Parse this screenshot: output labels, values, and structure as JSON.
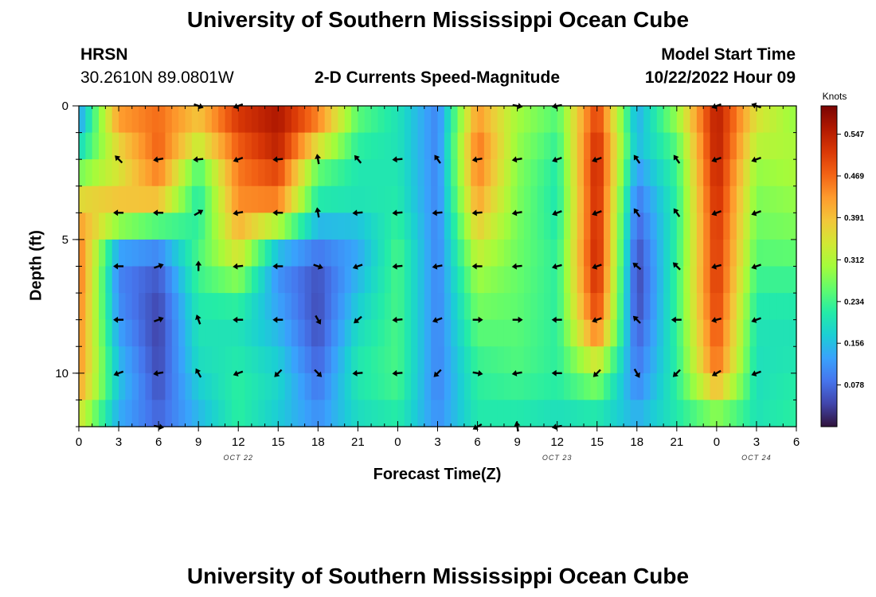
{
  "page": {
    "title_top": "University of Southern Mississippi Ocean Cube",
    "title_bottom": "University of Southern Mississippi Ocean Cube",
    "station": "HRSN",
    "coordinates": "30.2610N  89.0801W",
    "plot_title": "2-D Currents Speed-Magnitude",
    "model_start_label": "Model Start Time",
    "model_start_value": "10/22/2022 Hour 09"
  },
  "chart_data": {
    "type": "heatmap",
    "title": "2-D Currents Speed-Magnitude",
    "xlabel": "Forecast Time(Z)",
    "ylabel": "Depth (ft)",
    "x_range_hours": [
      0,
      54
    ],
    "y_range_ft": [
      0,
      12
    ],
    "x_ticks": [
      {
        "hour": 0,
        "label": "0"
      },
      {
        "hour": 3,
        "label": "3"
      },
      {
        "hour": 6,
        "label": "6"
      },
      {
        "hour": 9,
        "label": "9"
      },
      {
        "hour": 12,
        "label": "12"
      },
      {
        "hour": 15,
        "label": "15"
      },
      {
        "hour": 18,
        "label": "18"
      },
      {
        "hour": 21,
        "label": "21"
      },
      {
        "hour": 24,
        "label": "0"
      },
      {
        "hour": 27,
        "label": "3"
      },
      {
        "hour": 30,
        "label": "6"
      },
      {
        "hour": 33,
        "label": "9"
      },
      {
        "hour": 36,
        "label": "12"
      },
      {
        "hour": 39,
        "label": "15"
      },
      {
        "hour": 42,
        "label": "18"
      },
      {
        "hour": 45,
        "label": "21"
      },
      {
        "hour": 48,
        "label": "0"
      },
      {
        "hour": 51,
        "label": "3"
      },
      {
        "hour": 54,
        "label": "6"
      }
    ],
    "day_labels": [
      {
        "hour": 12,
        "label": "OCT 22"
      },
      {
        "hour": 36,
        "label": "OCT 23"
      },
      {
        "hour": 51,
        "label": "OCT 24"
      }
    ],
    "y_ticks": [
      {
        "ft": 0,
        "label": "0"
      },
      {
        "ft": 5,
        "label": "5"
      },
      {
        "ft": 10,
        "label": "10"
      }
    ],
    "colorbar": {
      "unit": "Knots",
      "min": 0.0,
      "max": 0.6,
      "ticks": [
        0.078,
        0.156,
        0.234,
        0.312,
        0.391,
        0.469,
        0.547
      ],
      "colors": [
        "#30123b",
        "#4145ab",
        "#4675ed",
        "#39a2fc",
        "#1bcfd4",
        "#24eca6",
        "#61fc6c",
        "#a4fc3b",
        "#d1e834",
        "#f3c63a",
        "#fe9b2d",
        "#f36315",
        "#d93806",
        "#b11901",
        "#7a0403"
      ]
    },
    "speed_grid_knots": {
      "x_node_hours": [
        0,
        3,
        6,
        9,
        12,
        15,
        18,
        21,
        24,
        27,
        30,
        33,
        36,
        39,
        42,
        45,
        48,
        51,
        54
      ],
      "depth_nodes_ft": [
        0,
        1,
        2,
        3,
        4,
        5,
        6,
        7,
        8,
        9,
        10,
        11,
        12
      ],
      "rows": [
        [
          0.1,
          0.45,
          0.45,
          0.37,
          0.53,
          0.55,
          0.45,
          0.26,
          0.2,
          0.1,
          0.4,
          0.3,
          0.25,
          0.5,
          0.12,
          0.32,
          0.55,
          0.36,
          0.28
        ],
        [
          0.15,
          0.4,
          0.48,
          0.4,
          0.5,
          0.57,
          0.44,
          0.24,
          0.2,
          0.1,
          0.46,
          0.3,
          0.24,
          0.52,
          0.16,
          0.26,
          0.56,
          0.34,
          0.3
        ],
        [
          0.22,
          0.34,
          0.47,
          0.26,
          0.46,
          0.52,
          0.27,
          0.2,
          0.2,
          0.1,
          0.46,
          0.28,
          0.21,
          0.55,
          0.14,
          0.24,
          0.55,
          0.3,
          0.31
        ],
        [
          0.32,
          0.36,
          0.43,
          0.22,
          0.45,
          0.48,
          0.24,
          0.21,
          0.21,
          0.1,
          0.44,
          0.28,
          0.21,
          0.54,
          0.1,
          0.22,
          0.54,
          0.28,
          0.3
        ],
        [
          0.4,
          0.41,
          0.35,
          0.2,
          0.43,
          0.42,
          0.18,
          0.19,
          0.21,
          0.1,
          0.4,
          0.27,
          0.2,
          0.54,
          0.08,
          0.22,
          0.53,
          0.27,
          0.28
        ],
        [
          0.45,
          0.16,
          0.14,
          0.24,
          0.38,
          0.2,
          0.12,
          0.13,
          0.24,
          0.1,
          0.35,
          0.27,
          0.22,
          0.54,
          0.06,
          0.22,
          0.52,
          0.26,
          0.27
        ],
        [
          0.47,
          0.1,
          0.07,
          0.24,
          0.32,
          0.11,
          0.06,
          0.14,
          0.24,
          0.1,
          0.31,
          0.26,
          0.22,
          0.55,
          0.04,
          0.23,
          0.52,
          0.24,
          0.24
        ],
        [
          0.46,
          0.1,
          0.05,
          0.22,
          0.24,
          0.12,
          0.05,
          0.16,
          0.24,
          0.1,
          0.28,
          0.26,
          0.22,
          0.52,
          0.04,
          0.23,
          0.52,
          0.22,
          0.22
        ],
        [
          0.45,
          0.12,
          0.04,
          0.2,
          0.2,
          0.14,
          0.05,
          0.18,
          0.24,
          0.1,
          0.26,
          0.25,
          0.22,
          0.5,
          0.05,
          0.23,
          0.5,
          0.2,
          0.2
        ],
        [
          0.44,
          0.14,
          0.04,
          0.2,
          0.2,
          0.16,
          0.06,
          0.2,
          0.24,
          0.1,
          0.24,
          0.25,
          0.22,
          0.4,
          0.08,
          0.22,
          0.48,
          0.2,
          0.2
        ],
        [
          0.44,
          0.16,
          0.05,
          0.18,
          0.22,
          0.18,
          0.08,
          0.21,
          0.24,
          0.1,
          0.22,
          0.24,
          0.22,
          0.3,
          0.09,
          0.22,
          0.46,
          0.19,
          0.21
        ],
        [
          0.4,
          0.16,
          0.06,
          0.16,
          0.22,
          0.18,
          0.1,
          0.2,
          0.23,
          0.1,
          0.22,
          0.22,
          0.21,
          0.24,
          0.12,
          0.22,
          0.33,
          0.2,
          0.22
        ],
        [
          0.3,
          0.12,
          0.08,
          0.14,
          0.22,
          0.16,
          0.12,
          0.18,
          0.2,
          0.12,
          0.2,
          0.2,
          0.18,
          0.18,
          0.16,
          0.2,
          0.24,
          0.2,
          0.22
        ]
      ]
    },
    "vectors_direction_deg_from_east": {
      "x_node_hours": [
        3,
        6,
        9,
        12,
        15,
        18,
        21,
        24,
        27,
        30,
        33,
        36,
        39,
        42,
        45,
        48,
        51
      ],
      "depth_nodes_ft": [
        0,
        2,
        4,
        6,
        8,
        10,
        12
      ],
      "rows": [
        [
          null,
          null,
          -20,
          -160,
          null,
          null,
          null,
          null,
          null,
          null,
          -10,
          -170,
          null,
          null,
          null,
          -160,
          -200
        ],
        [
          135,
          -170,
          -175,
          -160,
          -175,
          100,
          130,
          -175,
          125,
          -170,
          -170,
          -160,
          -160,
          125,
          125,
          -160,
          -160
        ],
        [
          180,
          180,
          30,
          -170,
          180,
          100,
          -175,
          -175,
          -175,
          -175,
          -170,
          -160,
          -160,
          125,
          125,
          -160,
          -160
        ],
        [
          180,
          20,
          90,
          -175,
          180,
          -20,
          -160,
          -175,
          -170,
          180,
          -175,
          -165,
          -160,
          140,
          135,
          -165,
          -160
        ],
        [
          180,
          20,
          110,
          180,
          180,
          -60,
          -140,
          -175,
          -160,
          0,
          0,
          180,
          -160,
          135,
          180,
          -165,
          -160
        ],
        [
          -160,
          -170,
          120,
          -160,
          -135,
          -45,
          -175,
          -175,
          -135,
          -10,
          -170,
          180,
          -135,
          -60,
          -135,
          -150,
          -160
        ],
        [
          null,
          -10,
          null,
          null,
          null,
          null,
          null,
          null,
          null,
          -150,
          100,
          -170,
          null,
          null,
          null,
          null,
          null
        ]
      ]
    }
  }
}
